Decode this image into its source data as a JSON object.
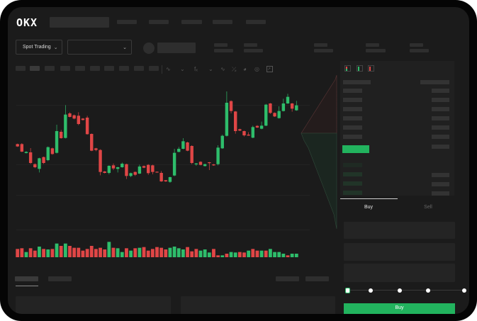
{
  "header": {
    "logo": "OKX"
  },
  "market_bar": {
    "mode_label": "Spot Trading",
    "pair_selector_value": ""
  },
  "order_form": {
    "tabs": [
      "Buy",
      "Sell"
    ],
    "active_tab": "Buy",
    "slider_percent": 0,
    "slider_steps": [
      0,
      25,
      50,
      75,
      100
    ]
  },
  "colors": {
    "up": "#2ebd6b",
    "down": "#e04646",
    "accent": "#22b35e",
    "background": "#1b1b1b"
  },
  "chart_data": {
    "type": "candlestick",
    "title": "",
    "grid": true,
    "candles_ohlc": [
      [
        220,
        210,
        222,
        208
      ],
      [
        220,
        188,
        224,
        186
      ],
      [
        182,
        187,
        190,
        180
      ],
      [
        185,
        140,
        203,
        136
      ],
      [
        135,
        122,
        138,
        118
      ],
      [
        115,
        160,
        162,
        100
      ],
      [
        165,
        140,
        167,
        136
      ],
      [
        152,
        207,
        210,
        148
      ],
      [
        202,
        178,
        205,
        175
      ],
      [
        183,
        275,
        302,
        180
      ],
      [
        272,
        245,
        280,
        243
      ],
      [
        246,
        345,
        385,
        244
      ],
      [
        350,
        335,
        355,
        333
      ],
      [
        342,
        328,
        345,
        325
      ],
      [
        340,
        305,
        355,
        300
      ],
      [
        328,
        322,
        330,
        320
      ],
      [
        332,
        262,
        340,
        260
      ],
      [
        263,
        192,
        265,
        190
      ],
      [
        202,
        195,
        204,
        190
      ],
      [
        195,
        102,
        198,
        88
      ],
      [
        104,
        98,
        106,
        96
      ],
      [
        98,
        128,
        130,
        92
      ],
      [
        130,
        117,
        138,
        110
      ],
      [
        115,
        122,
        124,
        100
      ],
      [
        122,
        137,
        142,
        120
      ],
      [
        135,
        85,
        137,
        72
      ],
      [
        85,
        97,
        99,
        80
      ],
      [
        102,
        90,
        104,
        85
      ],
      [
        95,
        125,
        133,
        93
      ],
      [
        127,
        120,
        129,
        118
      ],
      [
        132,
        97,
        135,
        90
      ],
      [
        130,
        102,
        133,
        92
      ],
      [
        103,
        100,
        104,
        99
      ],
      [
        98,
        62,
        106,
        60
      ],
      [
        67,
        62,
        68,
        60
      ],
      [
        60,
        80,
        82,
        56
      ],
      [
        87,
        183,
        200,
        84
      ],
      [
        187,
        200,
        208,
        185
      ],
      [
        200,
        232,
        245,
        198
      ],
      [
        227,
        192,
        230,
        190
      ],
      [
        212,
        140,
        215,
        135
      ],
      [
        134,
        138,
        140,
        128
      ],
      [
        145,
        132,
        147,
        130
      ],
      [
        127,
        135,
        137,
        125
      ],
      [
        143,
        140,
        144,
        110
      ],
      [
        134,
        130,
        136,
        128
      ],
      [
        135,
        205,
        215,
        130
      ],
      [
        202,
        255,
        260,
        200
      ],
      [
        255,
        395,
        443,
        252
      ],
      [
        402,
        360,
        405,
        350
      ],
      [
        358,
        275,
        360,
        264
      ],
      [
        283,
        277,
        285,
        275
      ],
      [
        275,
        257,
        277,
        252
      ],
      [
        260,
        256,
        270,
        255
      ],
      [
        247,
        292,
        298,
        245
      ],
      [
        297,
        290,
        300,
        288
      ],
      [
        285,
        298,
        315,
        283
      ],
      [
        298,
        387,
        390,
        296
      ],
      [
        392,
        352,
        394,
        348
      ],
      [
        352,
        337,
        354,
        335
      ],
      [
        330,
        360,
        380,
        328
      ],
      [
        360,
        392,
        412,
        358
      ],
      [
        392,
        420,
        433,
        390
      ],
      [
        392,
        370,
        394,
        357
      ],
      [
        363,
        384,
        403,
        361
      ]
    ],
    "volume": [
      35,
      38,
      22,
      38,
      28,
      45,
      35,
      33,
      35,
      58,
      48,
      58,
      48,
      40,
      40,
      28,
      35,
      48,
      35,
      40,
      33,
      65,
      40,
      38,
      22,
      38,
      28,
      38,
      40,
      43,
      28,
      35,
      43,
      40,
      33,
      40,
      45,
      38,
      33,
      43,
      25,
      35,
      28,
      33,
      20,
      35,
      8,
      8,
      15,
      22,
      20,
      22,
      20,
      28,
      35,
      28,
      28,
      28,
      35,
      22,
      22,
      15,
      8,
      15,
      15
    ],
    "volume_up": [
      0,
      0,
      1,
      0,
      0,
      1,
      0,
      1,
      0,
      1,
      0,
      1,
      0,
      0,
      0,
      0,
      0,
      0,
      0,
      0,
      0,
      1,
      0,
      1,
      1,
      0,
      1,
      0,
      1,
      0,
      0,
      0,
      0,
      0,
      0,
      1,
      1,
      1,
      1,
      0,
      0,
      0,
      1,
      1,
      1,
      0,
      0,
      1,
      0,
      1,
      1,
      0,
      0,
      1,
      0,
      0,
      1,
      0,
      1,
      1,
      1,
      1,
      0,
      1,
      1
    ],
    "depth_asks": [
      0,
      2,
      6,
      10,
      14,
      18,
      22,
      26,
      30,
      34,
      38,
      42,
      46,
      50
    ],
    "depth_bids": [
      50,
      46,
      40,
      36,
      32,
      28,
      24,
      20,
      16,
      12,
      8,
      4,
      2,
      0
    ]
  }
}
